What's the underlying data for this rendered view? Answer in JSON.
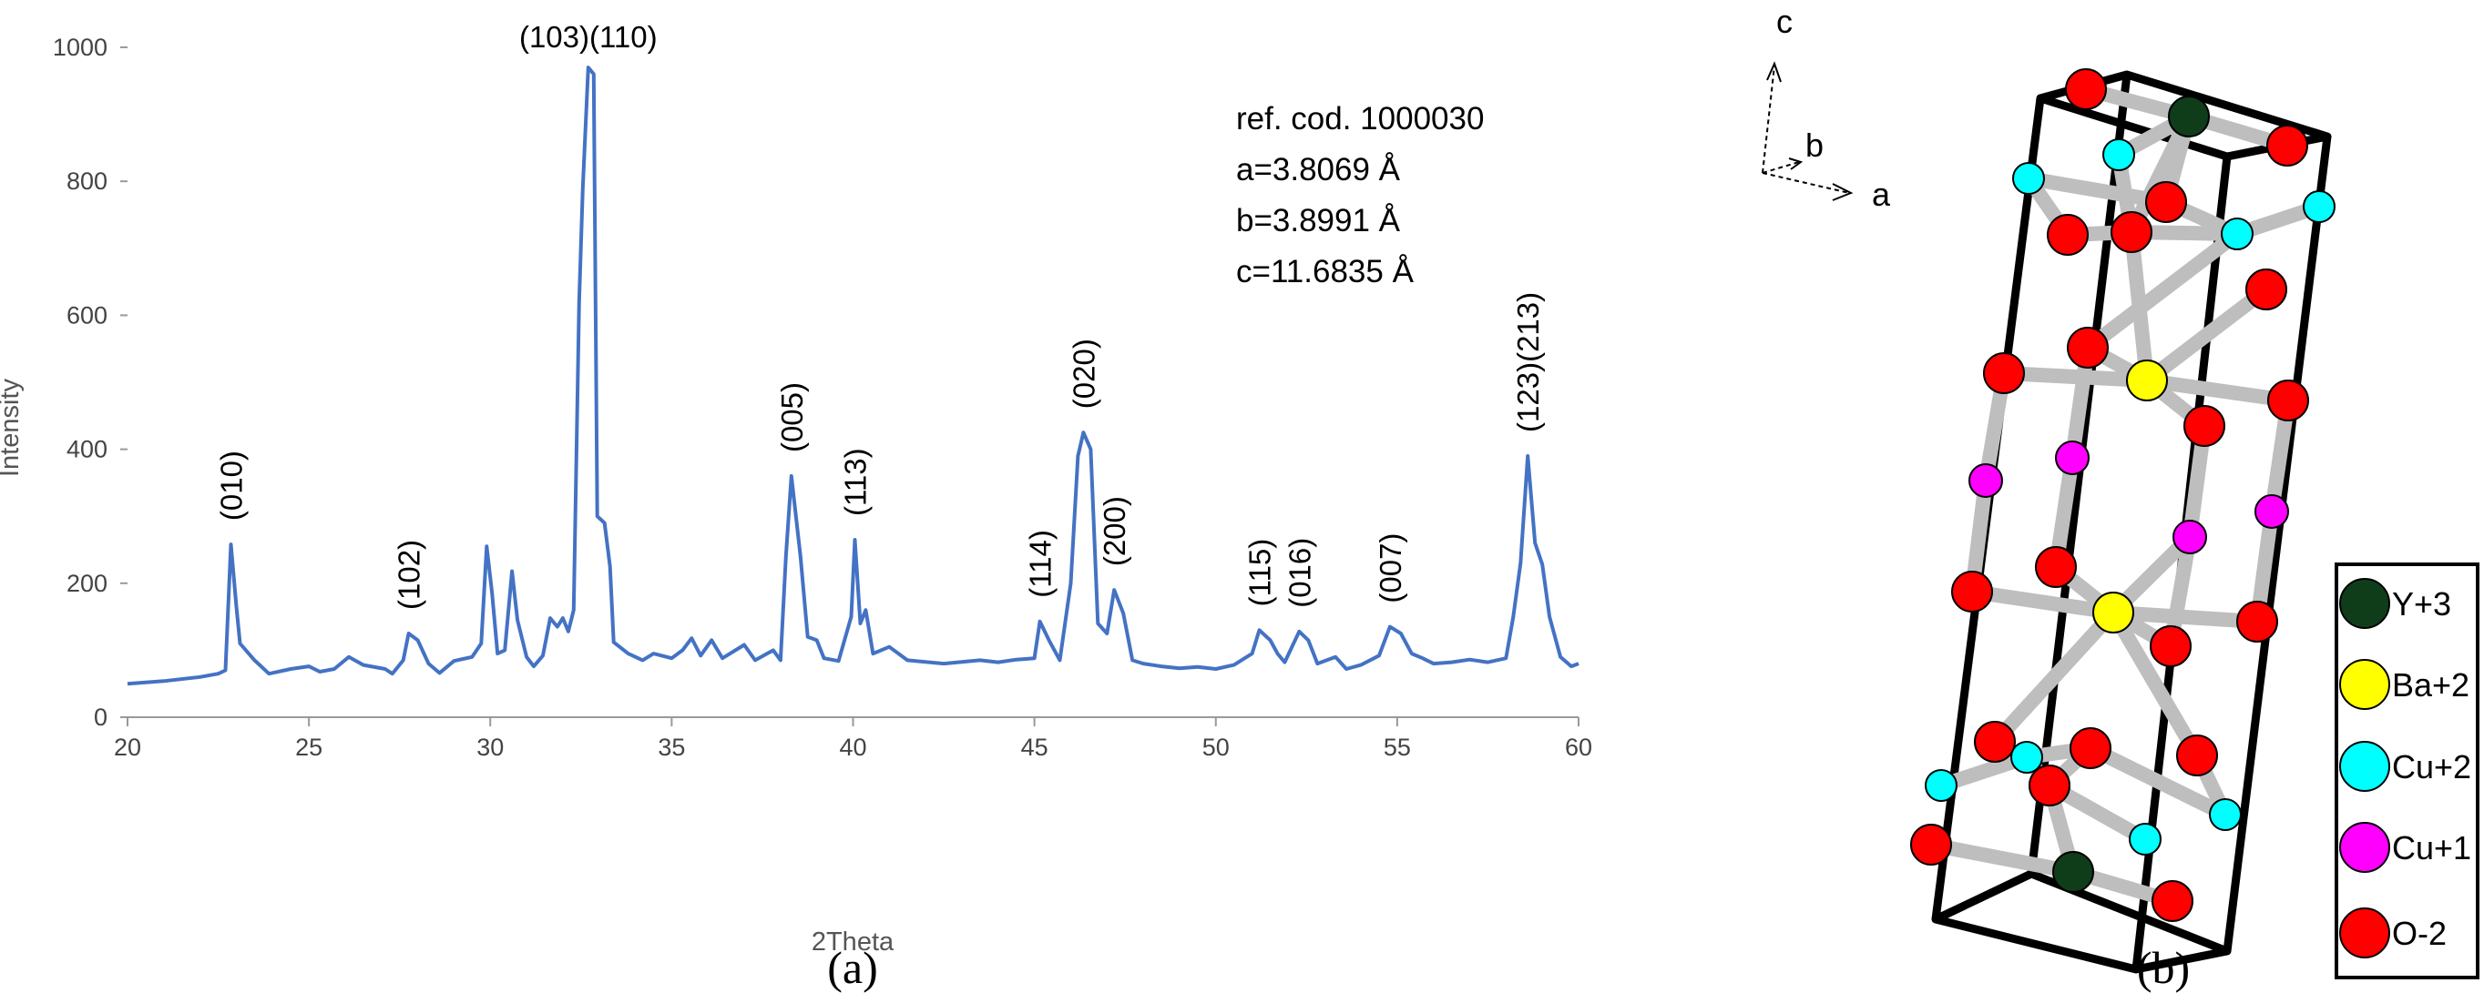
{
  "chart_data": {
    "type": "line",
    "title": "",
    "xlabel": "2Theta",
    "ylabel": "Intensity",
    "xlim": [
      20,
      60
    ],
    "ylim": [
      0,
      1000
    ],
    "x_ticks": [
      20,
      25,
      30,
      35,
      40,
      45,
      50,
      55,
      60
    ],
    "y_ticks": [
      0,
      200,
      400,
      600,
      800,
      1000
    ],
    "grid": false,
    "series_color": "#4472C4",
    "series": [
      {
        "points": [
          [
            20,
            50
          ],
          [
            21,
            54
          ],
          [
            22,
            60
          ],
          [
            22.5,
            65
          ],
          [
            22.7,
            70
          ],
          [
            22.85,
            258
          ],
          [
            23.0,
            165
          ],
          [
            23.1,
            110
          ],
          [
            23.5,
            85
          ],
          [
            23.9,
            65
          ],
          [
            24.5,
            72
          ],
          [
            25.0,
            76
          ],
          [
            25.3,
            68
          ],
          [
            25.7,
            72
          ],
          [
            26.1,
            90
          ],
          [
            26.5,
            78
          ],
          [
            27.1,
            72
          ],
          [
            27.3,
            65
          ],
          [
            27.6,
            85
          ],
          [
            27.75,
            125
          ],
          [
            28.0,
            115
          ],
          [
            28.3,
            80
          ],
          [
            28.6,
            66
          ],
          [
            29.0,
            84
          ],
          [
            29.5,
            90
          ],
          [
            29.75,
            110
          ],
          [
            29.9,
            255
          ],
          [
            30.05,
            185
          ],
          [
            30.2,
            95
          ],
          [
            30.4,
            100
          ],
          [
            30.6,
            218
          ],
          [
            30.75,
            145
          ],
          [
            31.0,
            90
          ],
          [
            31.2,
            76
          ],
          [
            31.45,
            92
          ],
          [
            31.65,
            148
          ],
          [
            31.85,
            135
          ],
          [
            32.0,
            148
          ],
          [
            32.15,
            128
          ],
          [
            32.3,
            160
          ],
          [
            32.45,
            620
          ],
          [
            32.55,
            790
          ],
          [
            32.7,
            970
          ],
          [
            32.85,
            960
          ],
          [
            32.95,
            300
          ],
          [
            33.15,
            290
          ],
          [
            33.3,
            225
          ],
          [
            33.4,
            112
          ],
          [
            33.8,
            95
          ],
          [
            34.2,
            85
          ],
          [
            34.5,
            95
          ],
          [
            35.0,
            88
          ],
          [
            35.3,
            100
          ],
          [
            35.55,
            118
          ],
          [
            35.8,
            92
          ],
          [
            36.1,
            115
          ],
          [
            36.4,
            88
          ],
          [
            37.0,
            108
          ],
          [
            37.3,
            85
          ],
          [
            37.8,
            100
          ],
          [
            38.0,
            85
          ],
          [
            38.15,
            240
          ],
          [
            38.3,
            360
          ],
          [
            38.55,
            240
          ],
          [
            38.75,
            120
          ],
          [
            39.0,
            115
          ],
          [
            39.2,
            88
          ],
          [
            39.6,
            84
          ],
          [
            39.95,
            150
          ],
          [
            40.05,
            265
          ],
          [
            40.2,
            140
          ],
          [
            40.35,
            160
          ],
          [
            40.55,
            95
          ],
          [
            41.0,
            105
          ],
          [
            41.5,
            85
          ],
          [
            42.5,
            80
          ],
          [
            43.5,
            85
          ],
          [
            44.0,
            82
          ],
          [
            44.5,
            86
          ],
          [
            45.0,
            88
          ],
          [
            45.15,
            143
          ],
          [
            45.4,
            115
          ],
          [
            45.7,
            85
          ],
          [
            46.0,
            200
          ],
          [
            46.2,
            390
          ],
          [
            46.35,
            425
          ],
          [
            46.55,
            400
          ],
          [
            46.75,
            140
          ],
          [
            47.0,
            125
          ],
          [
            47.2,
            190
          ],
          [
            47.45,
            155
          ],
          [
            47.7,
            85
          ],
          [
            48.0,
            80
          ],
          [
            48.5,
            76
          ],
          [
            49.0,
            73
          ],
          [
            49.5,
            75
          ],
          [
            50.0,
            72
          ],
          [
            50.5,
            78
          ],
          [
            51.0,
            95
          ],
          [
            51.2,
            130
          ],
          [
            51.5,
            115
          ],
          [
            51.7,
            95
          ],
          [
            51.9,
            82
          ],
          [
            52.3,
            128
          ],
          [
            52.55,
            115
          ],
          [
            52.8,
            80
          ],
          [
            53.3,
            90
          ],
          [
            53.6,
            72
          ],
          [
            54.0,
            78
          ],
          [
            54.5,
            92
          ],
          [
            54.8,
            135
          ],
          [
            55.1,
            125
          ],
          [
            55.4,
            95
          ],
          [
            55.7,
            88
          ],
          [
            56.0,
            80
          ],
          [
            56.5,
            82
          ],
          [
            57.0,
            86
          ],
          [
            57.5,
            82
          ],
          [
            58.0,
            88
          ],
          [
            58.2,
            150
          ],
          [
            58.4,
            230
          ],
          [
            58.6,
            390
          ],
          [
            58.8,
            260
          ],
          [
            59.0,
            228
          ],
          [
            59.2,
            150
          ],
          [
            59.5,
            90
          ],
          [
            59.8,
            76
          ],
          [
            60,
            80
          ]
        ]
      }
    ],
    "annotations": [
      {
        "label": "(010)",
        "x": 22.85,
        "y": 258,
        "orientation": "vertical"
      },
      {
        "label": "(102)",
        "x": 27.75,
        "y": 125,
        "orientation": "vertical"
      },
      {
        "label": "(103)(110)",
        "x": 32.7,
        "y": 970,
        "orientation": "horizontal"
      },
      {
        "label": "(005)",
        "x": 38.3,
        "y": 360,
        "orientation": "vertical"
      },
      {
        "label": "(113)",
        "x": 40.05,
        "y": 265,
        "orientation": "vertical"
      },
      {
        "label": "(114)",
        "x": 45.15,
        "y": 143,
        "orientation": "vertical"
      },
      {
        "label": "(020)",
        "x": 46.35,
        "y": 425,
        "orientation": "vertical"
      },
      {
        "label": "(200)",
        "x": 47.2,
        "y": 190,
        "orientation": "vertical"
      },
      {
        "label": "(115)",
        "x": 51.2,
        "y": 130,
        "orientation": "vertical"
      },
      {
        "label": "(016)",
        "x": 52.3,
        "y": 128,
        "orientation": "vertical"
      },
      {
        "label": "(007)",
        "x": 54.8,
        "y": 135,
        "orientation": "vertical"
      },
      {
        "label": "(123)(213)",
        "x": 58.6,
        "y": 390,
        "orientation": "vertical"
      }
    ],
    "info_lines": [
      "ref. cod. 1000030",
      "a=3.8069 Å",
      "b=3.8991 Å",
      "c=11.6835 Å"
    ]
  },
  "panel_labels": {
    "left": "(a)",
    "right": "(b)"
  },
  "crystal": {
    "axis_labels": {
      "c": "c",
      "b": "b",
      "a": "a"
    },
    "legend": [
      {
        "label": "Y+3",
        "color": "#0F3D1A"
      },
      {
        "label": "Ba+2",
        "color": "#FFFF00"
      },
      {
        "label": "Cu+2",
        "color": "#00FFFF"
      },
      {
        "label": "Cu+1",
        "color": "#FF00FF"
      },
      {
        "label": "O-2",
        "color": "#FF0000"
      }
    ]
  }
}
